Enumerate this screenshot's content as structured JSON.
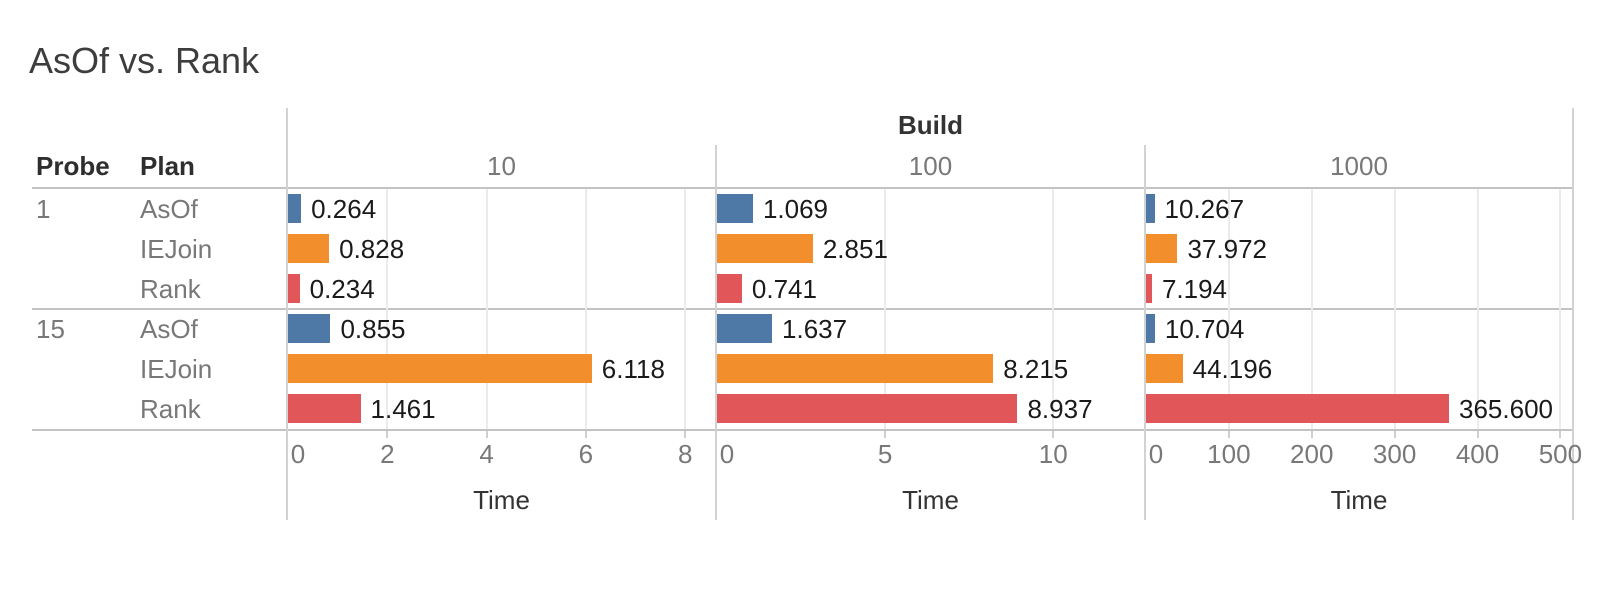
{
  "title": "AsOf vs. Rank",
  "axis": {
    "label": "Time"
  },
  "palette": {
    "AsOf": "#4e79a7",
    "IEJoin": "#f28e2b",
    "Rank": "#e15759"
  },
  "chart_data": {
    "type": "bar",
    "orientation": "horizontal",
    "title": "AsOf vs. Rank",
    "column_field": "Build",
    "row_fields": [
      "Probe",
      "Plan"
    ],
    "value_field": "Time",
    "grid": true,
    "legend": false,
    "columns": [
      {
        "build": "10",
        "ticks": [
          0,
          2,
          4,
          6,
          8
        ],
        "xmax": 8.6
      },
      {
        "build": "100",
        "ticks": [
          0,
          5,
          10
        ],
        "xmax": 12.7
      },
      {
        "build": "1000",
        "ticks": [
          0,
          100,
          200,
          300,
          400,
          500
        ],
        "xmax": 514
      }
    ],
    "groups": [
      {
        "probe": "1",
        "rows": [
          {
            "plan": "AsOf",
            "times": [
              0.264,
              1.069,
              10.267
            ]
          },
          {
            "plan": "IEJoin",
            "times": [
              0.828,
              2.851,
              37.972
            ]
          },
          {
            "plan": "Rank",
            "times": [
              0.234,
              0.741,
              7.194
            ]
          }
        ]
      },
      {
        "probe": "15",
        "rows": [
          {
            "plan": "AsOf",
            "times": [
              0.855,
              1.637,
              10.704
            ]
          },
          {
            "plan": "IEJoin",
            "times": [
              6.118,
              8.215,
              44.196
            ]
          },
          {
            "plan": "Rank",
            "times": [
              1.461,
              8.937,
              365.6
            ]
          }
        ]
      }
    ]
  }
}
